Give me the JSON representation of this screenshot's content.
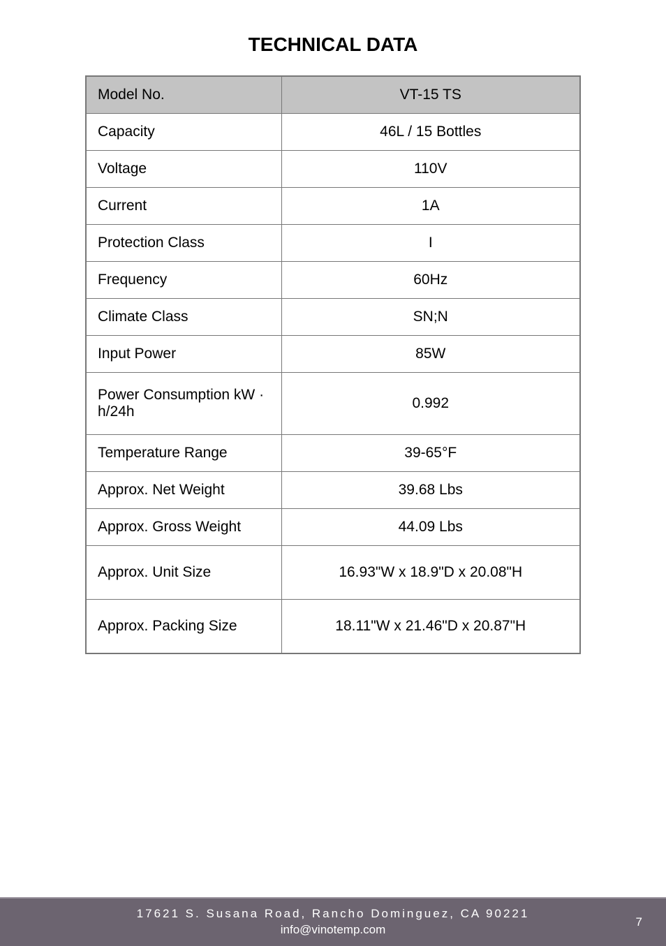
{
  "title": "TECHNICAL DATA",
  "table": {
    "header": {
      "label": "Model No.",
      "value": "VT-15 TS"
    },
    "rows": [
      {
        "label": "Capacity",
        "value": "46L / 15 Bottles"
      },
      {
        "label": "Voltage",
        "value": "110V"
      },
      {
        "label": "Current",
        "value": "1A"
      },
      {
        "label": "Protection Class",
        "value": "I"
      },
      {
        "label": "Frequency",
        "value": "60Hz"
      },
      {
        "label": "Climate Class",
        "value": "SN;N"
      },
      {
        "label": "Input Power",
        "value": "85W"
      },
      {
        "label": "Power Consumption kW · h/24h",
        "value": "0.992"
      },
      {
        "label": "Temperature Range",
        "value": "39-65°F"
      },
      {
        "label": "Approx. Net Weight",
        "value": "39.68 Lbs"
      },
      {
        "label": "Approx. Gross Weight",
        "value": "44.09 Lbs"
      },
      {
        "label": "Approx. Unit Size",
        "value": "16.93\"W x 18.9\"D x 20.08\"H"
      },
      {
        "label": "Approx. Packing Size",
        "value": "18.11\"W x 21.46\"D x 20.87\"H"
      }
    ]
  },
  "footer": {
    "address": "17621 S. Susana Road, Rancho Dominguez, CA 90221",
    "email": "info@vinotemp.com",
    "page_number": "7"
  },
  "colors": {
    "page_bg": "#ffffff",
    "header_row_bg": "#c3c3c3",
    "table_border": "#777777",
    "text": "#000000",
    "footer_bg": "#6c6470",
    "footer_border": "#9a939e",
    "footer_text": "#ffffff"
  }
}
